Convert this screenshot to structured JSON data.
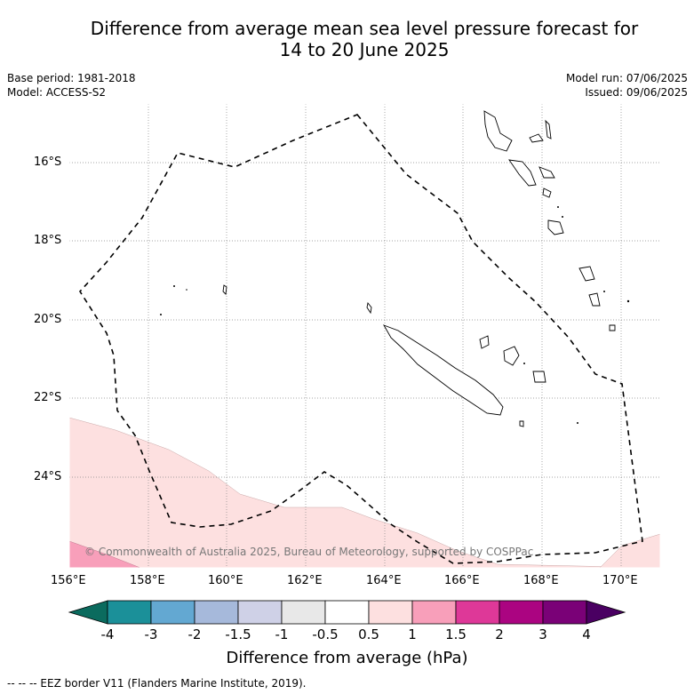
{
  "title_line1": "Difference from average mean sea level pressure forecast for",
  "title_line2": "14 to 20 June 2025",
  "base_period": "Base period: 1981-2018",
  "model": "Model: ACCESS-S2",
  "model_run": "Model run: 07/06/2025",
  "issued": "Issued: 09/06/2025",
  "lat_labels": [
    "16°S",
    "18°S",
    "20°S",
    "22°S",
    "24°S"
  ],
  "lon_labels": [
    "156°E",
    "158°E",
    "160°E",
    "162°E",
    "164°E",
    "166°E",
    "168°E",
    "170°E"
  ],
  "copyright": "© Commonwealth of Australia 2025, Bureau of Meteorology, supported by COSPPac",
  "colorbar": {
    "title": "Difference from average (hPa)",
    "tick_labels": [
      "-4",
      "-3",
      "-2",
      "-1.5",
      "-1",
      "-0.5",
      "0.5",
      "1",
      "1.5",
      "2",
      "3",
      "4"
    ],
    "colors": [
      "#0b6b5e",
      "#1b9099",
      "#63a8d2",
      "#a6b9db",
      "#cfd1e7",
      "#e8e8e8",
      "#ffffff",
      "#fde0e0",
      "#f89fba",
      "#de3898",
      "#ab0481",
      "#7a0177",
      "#4a0062"
    ]
  },
  "legend_note": "--  --  -- EEZ border V11 (Flanders Marine Institute, 2019).",
  "colors": {
    "positive_fill_light": "#fde0e0",
    "positive_fill_mid": "#f89fba",
    "eez_line": "#000000",
    "grid": "#888888"
  }
}
